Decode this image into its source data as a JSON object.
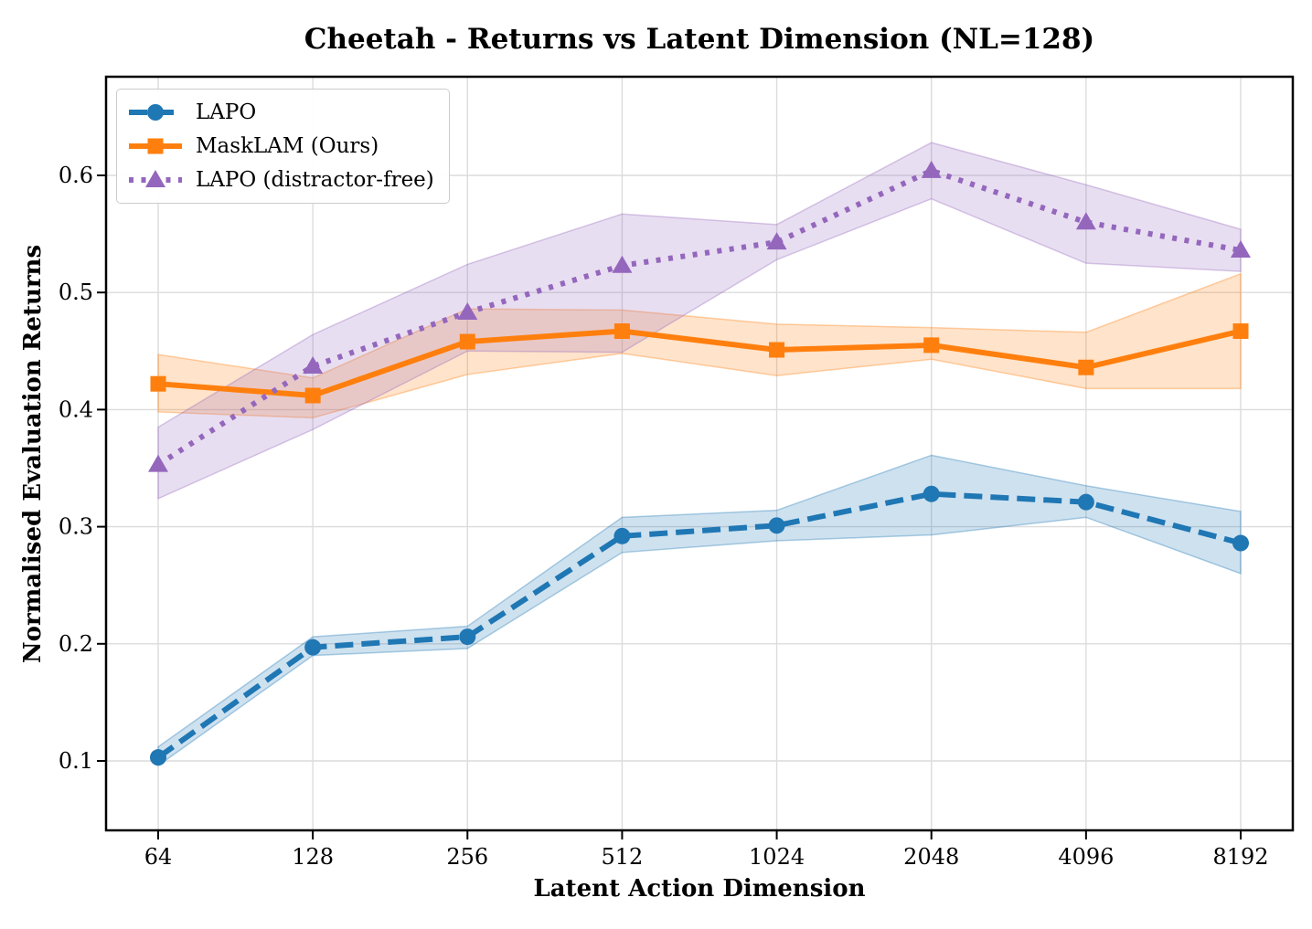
{
  "chart_data": {
    "type": "line",
    "title": "Cheetah - Returns vs Latent Dimension (NL=128)",
    "xlabel": "Latent Action Dimension",
    "ylabel": "Normalised Evaluation Returns",
    "x_scale": "log2",
    "grid": true,
    "legend_position": "upper left",
    "categories": [
      64,
      128,
      256,
      512,
      1024,
      2048,
      4096,
      8192
    ],
    "x_tick_labels": [
      "64",
      "128",
      "256",
      "512",
      "1024",
      "2048",
      "4096",
      "8192"
    ],
    "y_ticks": [
      0.1,
      0.2,
      0.3,
      0.4,
      0.5,
      0.6
    ],
    "y_tick_labels": [
      "0.1",
      "0.2",
      "0.3",
      "0.4",
      "0.5",
      "0.6"
    ],
    "ylim": [
      0.04,
      0.68
    ],
    "series": [
      {
        "name": "LAPO",
        "color": "#1f77b4",
        "line_style": "dashed",
        "marker": "circle",
        "values": [
          0.103,
          0.197,
          0.206,
          0.292,
          0.301,
          0.328,
          0.321,
          0.286
        ],
        "band_low": [
          0.096,
          0.19,
          0.196,
          0.278,
          0.288,
          0.293,
          0.308,
          0.26
        ],
        "band_high": [
          0.112,
          0.206,
          0.215,
          0.308,
          0.314,
          0.361,
          0.335,
          0.313
        ]
      },
      {
        "name": "MaskLAM (Ours)",
        "color": "#ff7f0e",
        "line_style": "solid",
        "marker": "square",
        "values": [
          0.422,
          0.412,
          0.458,
          0.467,
          0.451,
          0.455,
          0.436,
          0.467
        ],
        "band_low": [
          0.398,
          0.393,
          0.43,
          0.448,
          0.429,
          0.443,
          0.418,
          0.418
        ],
        "band_high": [
          0.447,
          0.427,
          0.486,
          0.485,
          0.473,
          0.47,
          0.466,
          0.516
        ]
      },
      {
        "name": "LAPO (distractor-free)",
        "color": "#9467bd",
        "line_style": "dotted",
        "marker": "triangle",
        "values": [
          0.353,
          0.437,
          0.483,
          0.523,
          0.543,
          0.604,
          0.56,
          0.536
        ],
        "band_low": [
          0.324,
          0.383,
          0.45,
          0.449,
          0.528,
          0.58,
          0.525,
          0.518
        ],
        "band_high": [
          0.385,
          0.464,
          0.524,
          0.567,
          0.558,
          0.628,
          0.592,
          0.554
        ]
      }
    ]
  },
  "colors": {
    "grid": "#dcdcdc",
    "spine": "#000000",
    "text": "#000000",
    "legend_border": "#cccccc",
    "band_opacity": 0.22
  }
}
